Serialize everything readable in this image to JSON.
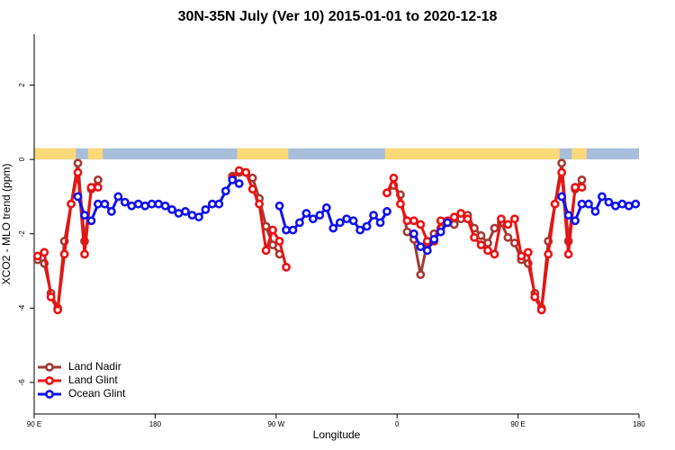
{
  "chart_data": {
    "type": "line",
    "title": "30N-35N July (Ver 10)   2015-01-01 to 2020-12-18",
    "x_label": "Longitude",
    "y_label": "XCO2 - MLO trend (ppm)",
    "xlim": [
      90,
      540
    ],
    "ylim": [
      -6.85,
      3.37
    ],
    "xticks": [
      {
        "value": 90,
        "label": "90 E"
      },
      180,
      {
        "value": 270,
        "label": "90 W"
      },
      {
        "value": 360,
        "label": "0"
      },
      {
        "value": 450,
        "label": "90 E"
      },
      {
        "value": 540,
        "label": "180"
      }
    ],
    "yticks": [
      2,
      0,
      -2,
      -4,
      -6
    ],
    "legend": "bottom-left",
    "land_mask": {
      "color": "#fbd878",
      "ocean_color": "#a9bedb",
      "band_ylim": [
        0,
        0.3
      ],
      "spans": [
        [
          90,
          121
        ],
        [
          130,
          141
        ],
        [
          241,
          279
        ],
        [
          351,
          481
        ],
        [
          490,
          501
        ]
      ]
    },
    "x": [
      92.5,
      97.5,
      102.5,
      107.5,
      112.5,
      117.5,
      122.5,
      127.5,
      132.5,
      137.5,
      142.5,
      147.5,
      152.5,
      157.5,
      162.5,
      167.5,
      172.5,
      177.5,
      182.5,
      187.5,
      192.5,
      197.5,
      202.5,
      207.5,
      212.5,
      217.5,
      222.5,
      227.5,
      232.5,
      237.5,
      242.5,
      247.5,
      252.5,
      257.5,
      262.5,
      267.5,
      272.5,
      277.5,
      282.5,
      287.5,
      292.5,
      297.5,
      302.5,
      307.5,
      312.5,
      317.5,
      322.5,
      327.5,
      332.5,
      337.5,
      342.5,
      347.5,
      352.5,
      357.5,
      362.5,
      367.5,
      372.5,
      377.5,
      382.5,
      387.5,
      392.5,
      397.5,
      402.5,
      407.5,
      412.5,
      417.5,
      422.5,
      427.5,
      432.5,
      437.5,
      442.5,
      447.5,
      452.5,
      457.5,
      462.5,
      467.5,
      472.5,
      477.5,
      482.5,
      487.5,
      492.5,
      497.5,
      502.5,
      507.5,
      512.5,
      517.5,
      522.5,
      527.5,
      532.5,
      537.5
    ],
    "series": [
      {
        "name": "Land Nadir",
        "color": "#a33a33",
        "values": [
          -2.7,
          -2.8,
          -3.6,
          -4.0,
          -2.2,
          -1.2,
          -0.1,
          -2.2,
          -0.8,
          -0.55,
          null,
          null,
          null,
          null,
          null,
          null,
          null,
          null,
          null,
          null,
          null,
          null,
          null,
          null,
          null,
          null,
          null,
          null,
          null,
          -0.45,
          -0.35,
          -0.35,
          -0.5,
          -1.05,
          -1.8,
          -2.3,
          -2.55,
          null,
          null,
          null,
          null,
          null,
          null,
          null,
          null,
          null,
          null,
          null,
          null,
          null,
          null,
          null,
          -0.9,
          -0.7,
          -0.95,
          -1.95,
          -2.15,
          -3.1,
          -2.25,
          -2.0,
          -1.85,
          -1.7,
          -1.75,
          -1.6,
          -1.5,
          -1.85,
          -2.05,
          -2.25,
          -1.85,
          -1.7,
          -2.1,
          -2.25,
          -2.7,
          -2.8,
          -3.6,
          -4.0,
          -2.2,
          -1.2,
          -0.1,
          -2.2,
          -0.8,
          -0.55,
          null,
          null,
          null,
          null,
          null,
          null,
          null,
          null
        ]
      },
      {
        "name": "Land Glint",
        "color": "#ee1111",
        "values": [
          -2.6,
          -2.5,
          -3.7,
          -4.05,
          -2.55,
          -1.2,
          -0.35,
          -2.55,
          -0.75,
          -0.75,
          null,
          null,
          null,
          null,
          null,
          null,
          null,
          null,
          null,
          null,
          null,
          null,
          null,
          null,
          null,
          null,
          null,
          null,
          null,
          -0.5,
          -0.3,
          -0.35,
          -0.8,
          -1.2,
          -2.45,
          -1.9,
          -2.2,
          -2.9,
          null,
          null,
          null,
          null,
          null,
          null,
          null,
          null,
          null,
          null,
          null,
          null,
          null,
          null,
          -0.9,
          -0.5,
          -1.2,
          -1.65,
          -1.65,
          -1.75,
          -2.2,
          -2.2,
          -1.65,
          -1.65,
          -1.55,
          -1.45,
          -1.6,
          -2.1,
          -2.3,
          -2.45,
          -2.55,
          -1.6,
          -1.75,
          -1.6,
          -2.6,
          -2.5,
          -3.7,
          -4.05,
          -2.55,
          -1.2,
          -0.35,
          -2.55,
          -0.75,
          -0.75,
          null,
          null,
          null,
          null,
          null,
          null,
          null,
          null
        ]
      },
      {
        "name": "Ocean Glint",
        "color": "#1111ee",
        "values": [
          null,
          null,
          null,
          null,
          null,
          null,
          -1.0,
          -1.5,
          -1.65,
          -1.2,
          -1.2,
          -1.4,
          -1.0,
          -1.15,
          -1.25,
          -1.2,
          -1.25,
          -1.2,
          -1.2,
          -1.25,
          -1.35,
          -1.45,
          -1.4,
          -1.5,
          -1.55,
          -1.35,
          -1.2,
          -1.2,
          -0.85,
          -0.55,
          -0.65,
          null,
          null,
          null,
          null,
          null,
          -1.25,
          -1.9,
          -1.9,
          -1.7,
          -1.45,
          -1.6,
          -1.5,
          -1.3,
          -1.85,
          -1.7,
          -1.6,
          -1.65,
          -1.9,
          -1.8,
          -1.5,
          -1.7,
          -1.4,
          null,
          null,
          null,
          -2.0,
          -2.35,
          -2.45,
          -2.15,
          -1.95,
          -1.7,
          null,
          null,
          null,
          null,
          null,
          null,
          null,
          null,
          null,
          null,
          null,
          null,
          null,
          null,
          null,
          null,
          -1.0,
          -1.5,
          -1.65,
          -1.2,
          -1.2,
          -1.4,
          -1.0,
          -1.15,
          -1.25,
          -1.2,
          -1.25,
          -1.2
        ]
      }
    ]
  }
}
